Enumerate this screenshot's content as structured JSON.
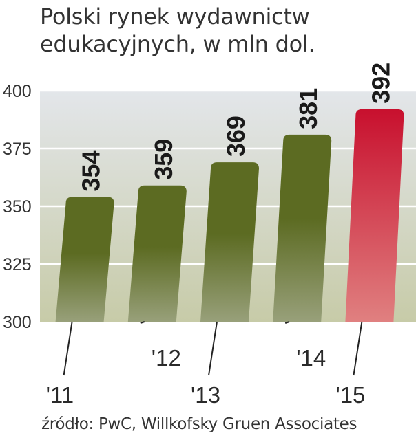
{
  "title": {
    "line1": "Polski rynek wydawnictw",
    "line2": "edukacyjnych, w mln dol."
  },
  "source": "źródło: PwC, Willkofsky Gruen Associates",
  "colors": {
    "bar": "#5c6b22",
    "bar_fade": "#98a07a",
    "highlight": "#c8102e",
    "highlight_fade": "#e08080",
    "plot_bg_top": "#e3e6ea",
    "plot_bg_bottom": "#c7cba8",
    "grid": "#ffffff",
    "axis": "#222222"
  },
  "chart_data": {
    "type": "bar",
    "title": "Polski rynek wydawnictw edukacyjnych, w mln dol.",
    "categories": [
      "'11",
      "'12",
      "'13",
      "'14",
      "'15"
    ],
    "values": [
      354,
      359,
      369,
      381,
      392
    ],
    "highlight_index": 4,
    "ylim": [
      300,
      400
    ],
    "yticks": [
      "300",
      "325",
      "350",
      "375",
      "400"
    ],
    "grid": true,
    "legend": "none"
  }
}
